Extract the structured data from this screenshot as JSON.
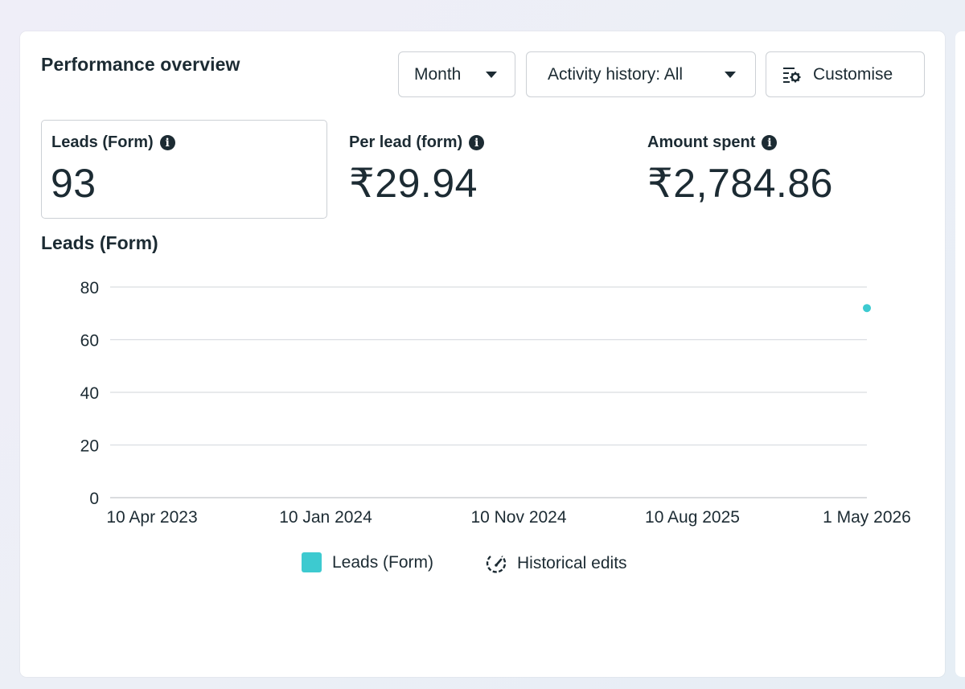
{
  "header": {
    "title": "Performance overview",
    "month_label": "Month",
    "activity_label": "Activity history: All",
    "customise_label": "Customise"
  },
  "metrics": [
    {
      "label": "Leads (Form)",
      "value": "93",
      "selected": true
    },
    {
      "label": "Per lead (form)",
      "value": "₹29.94",
      "selected": false
    },
    {
      "label": "Amount spent",
      "value": "₹2,784.86",
      "selected": false
    }
  ],
  "icons": {
    "info": "info-icon",
    "caret": "chevron-down-icon",
    "customise": "customise-icon",
    "historical": "historical-edits-icon"
  },
  "colors": {
    "series": "#3dcad0",
    "text": "#1c2b33",
    "grid": "#dadde1"
  },
  "chart_data": {
    "type": "scatter",
    "title": "Leads (Form)",
    "y_ticks": [
      "0",
      "20",
      "40",
      "60",
      "80"
    ],
    "ylim": [
      0,
      80
    ],
    "x_ticks": [
      "10 Apr 2023",
      "10 Jan 2024",
      "10 Nov 2024",
      "10 Aug 2025",
      "1 May 2026"
    ],
    "xlim": [
      "2023-04-10",
      "2026-05-01"
    ],
    "grid": true,
    "series": [
      {
        "name": "Leads (Form)",
        "points": [
          {
            "x": "2026-05-01",
            "y": 72
          }
        ]
      }
    ],
    "legend": {
      "position": "bottom",
      "items": [
        "Leads (Form)",
        "Historical edits"
      ]
    }
  }
}
